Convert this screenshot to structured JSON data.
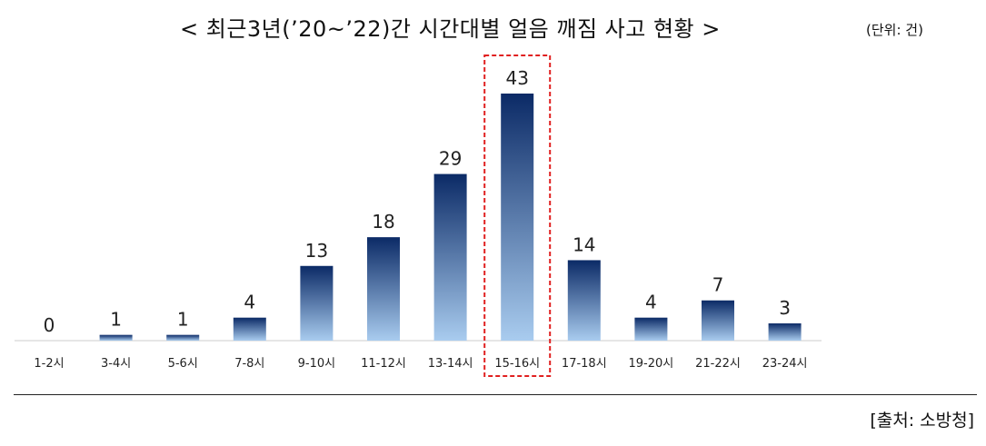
{
  "title": "<  최근3년(’20~’22)간 시간대별 얼음 깨짐 사고 현황  >",
  "unit": "(단위: 건)",
  "source": "[출처: 소방청]",
  "colors": {
    "bar_top": "#0b2a66",
    "bar_bottom": "#a9ccef",
    "highlight": "#e02020",
    "axis": "#dddddd"
  },
  "chart_data": {
    "type": "bar",
    "title": "<  최근3년(’20~’22)간 시간대별 얼음 깨짐 사고 현황  >",
    "xlabel": "",
    "ylabel": "",
    "categories": [
      "1-2시",
      "3-4시",
      "5-6시",
      "7-8시",
      "9-10시",
      "11-12시",
      "13-14시",
      "15-16시",
      "17-18시",
      "19-20시",
      "21-22시",
      "23-24시"
    ],
    "values": [
      0,
      1,
      1,
      4,
      13,
      18,
      29,
      43,
      14,
      4,
      7,
      3
    ],
    "ylim": [
      0,
      43
    ],
    "grid": false,
    "highlight_category": "15-16시"
  }
}
